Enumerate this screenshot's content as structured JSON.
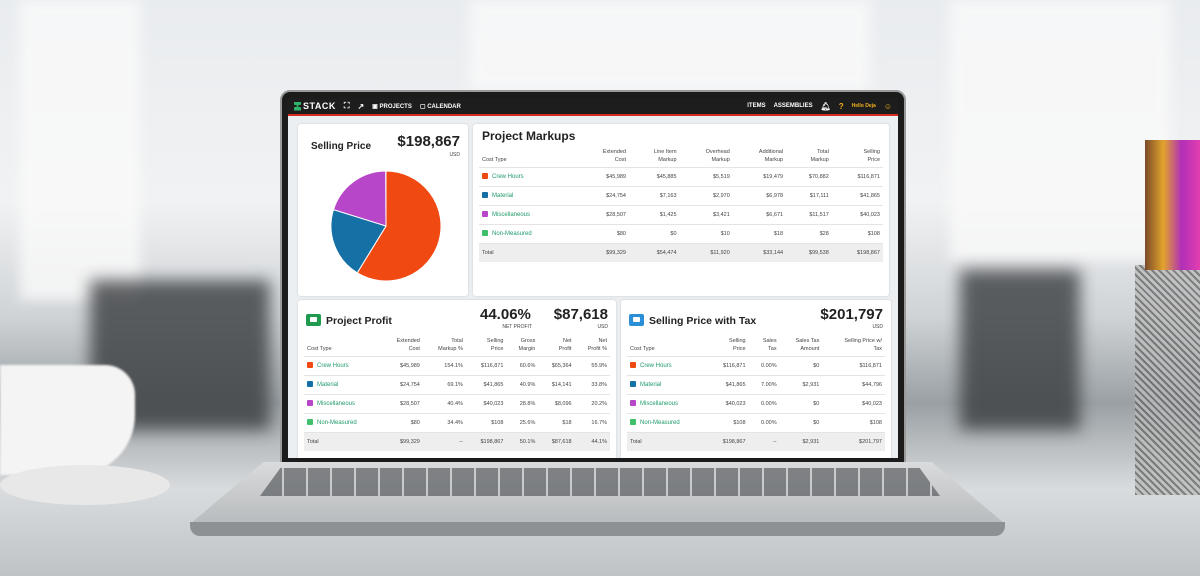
{
  "navbar": {
    "logo": "STACK",
    "projects": "PROJECTS",
    "calendar": "CALENDAR",
    "items": "ITEMS",
    "assemblies": "ASSEMBLIES",
    "greeting": "Hello Deja"
  },
  "colors": {
    "crew_hours": "#f04a12",
    "material": "#1570a6",
    "miscellaneous": "#b746c9",
    "non_measured": "#3fbf6a",
    "accent": "#d42a20"
  },
  "selling_price": {
    "title": "Selling Price",
    "value": "$198,867",
    "currency": "USD",
    "chart_data": {
      "type": "pie",
      "categories": [
        "Crew Hours",
        "Material",
        "Miscellaneous",
        "Non-Measured"
      ],
      "values": [
        116871,
        41865,
        40023,
        108
      ]
    }
  },
  "markups": {
    "title": "Project Markups",
    "headers": [
      "Cost Type",
      "Extended\nCost",
      "Line Item\nMarkup",
      "Overhead\nMarkup",
      "Additional\nMarkup",
      "Total\nMarkup",
      "Selling\nPrice"
    ],
    "rows": [
      [
        "Crew Hours",
        "$45,989",
        "$45,885",
        "$5,519",
        "$19,479",
        "$70,882",
        "$116,871"
      ],
      [
        "Material",
        "$24,754",
        "$7,163",
        "$2,970",
        "$6,978",
        "$17,111",
        "$41,865"
      ],
      [
        "Miscellaneous",
        "$28,507",
        "$1,425",
        "$3,421",
        "$6,671",
        "$11,517",
        "$40,023"
      ],
      [
        "Non-Measured",
        "$80",
        "$0",
        "$10",
        "$18",
        "$28",
        "$108"
      ]
    ],
    "total": [
      "Total",
      "$99,329",
      "$54,474",
      "$11,920",
      "$33,144",
      "$99,538",
      "$198,867"
    ]
  },
  "profit": {
    "title": "Project Profit",
    "percent": "44.06%",
    "percent_label": "NET PROFIT",
    "value": "$87,618",
    "currency": "USD",
    "headers": [
      "Cost Type",
      "Extended\nCost",
      "Total\nMarkup %",
      "Selling\nPrice",
      "Gross\nMargin",
      "Net\nProfit",
      "Net\nProfit %"
    ],
    "rows": [
      [
        "Crew Hours",
        "$45,989",
        "154.1%",
        "$116,871",
        "60.6%",
        "$65,364",
        "55.9%"
      ],
      [
        "Material",
        "$24,754",
        "69.1%",
        "$41,865",
        "40.9%",
        "$14,141",
        "33.8%"
      ],
      [
        "Miscellaneous",
        "$28,507",
        "40.4%",
        "$40,023",
        "28.8%",
        "$8,096",
        "20.2%"
      ],
      [
        "Non-Measured",
        "$80",
        "34.4%",
        "$108",
        "25.6%",
        "$18",
        "16.7%"
      ]
    ],
    "total": [
      "Total",
      "$99,329",
      "--",
      "$198,867",
      "50.1%",
      "$87,618",
      "44.1%"
    ]
  },
  "tax": {
    "title": "Selling Price with Tax",
    "value": "$201,797",
    "currency": "USD",
    "headers": [
      "Cost Type",
      "Selling\nPrice",
      "Sales\nTax",
      "Sales Tax\nAmount",
      "Selling Price w/\nTax"
    ],
    "rows": [
      [
        "Crew Hours",
        "$116,871",
        "0.00%",
        "$0",
        "$116,871"
      ],
      [
        "Material",
        "$41,865",
        "7.00%",
        "$2,931",
        "$44,796"
      ],
      [
        "Miscellaneous",
        "$40,023",
        "0.00%",
        "$0",
        "$40,023"
      ],
      [
        "Non-Measured",
        "$108",
        "0.00%",
        "$0",
        "$108"
      ]
    ],
    "total": [
      "Total",
      "$198,867",
      "--",
      "$2,931",
      "$201,797"
    ]
  }
}
